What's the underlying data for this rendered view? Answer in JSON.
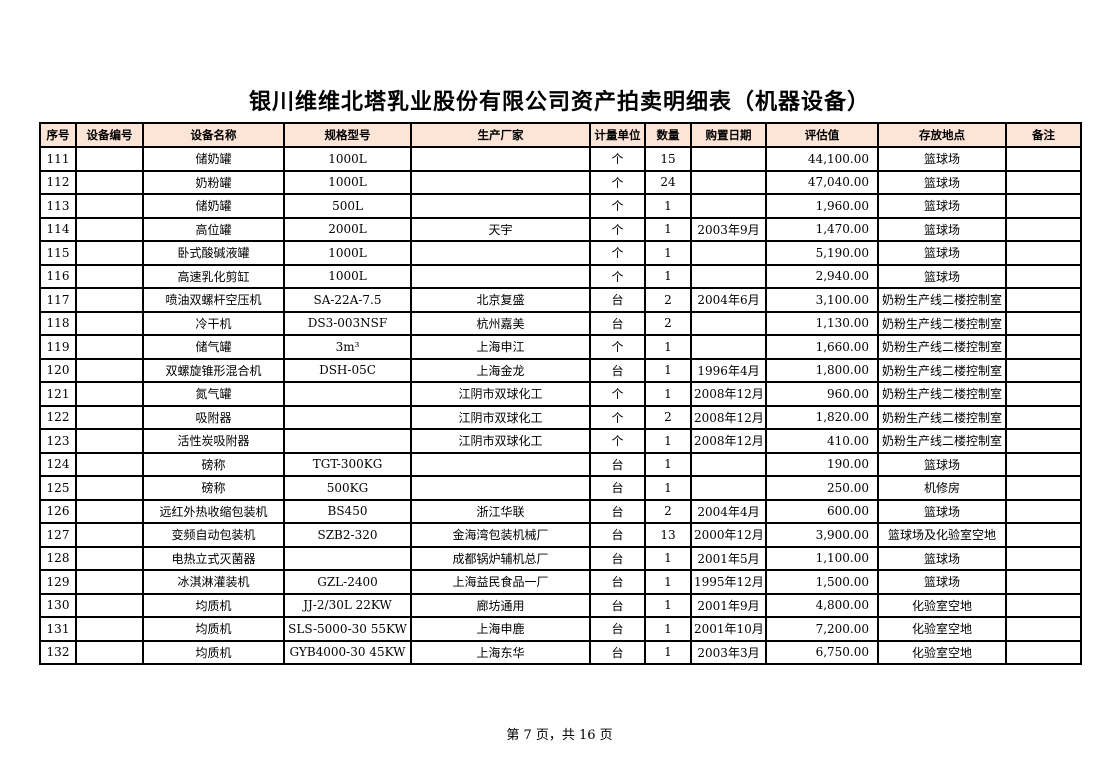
{
  "title": "银川维维北塔乳业股份有限公司资产拍卖明细表（机器设备）",
  "columns": [
    "序号",
    "设备编号",
    "设备名称",
    "规格型号",
    "生产厂家",
    "计量单位",
    "数量",
    "购置日期",
    "评估值",
    "存放地点",
    "备注"
  ],
  "rows": [
    [
      "111",
      "",
      "储奶罐",
      "1000L",
      "",
      "个",
      "15",
      "",
      "44,100.00",
      "篮球场",
      ""
    ],
    [
      "112",
      "",
      "奶粉罐",
      "1000L",
      "",
      "个",
      "24",
      "",
      "47,040.00",
      "篮球场",
      ""
    ],
    [
      "113",
      "",
      "储奶罐",
      "500L",
      "",
      "个",
      "1",
      "",
      "1,960.00",
      "篮球场",
      ""
    ],
    [
      "114",
      "",
      "高位罐",
      "2000L",
      "天宇",
      "个",
      "1",
      "2003年9月",
      "1,470.00",
      "篮球场",
      ""
    ],
    [
      "115",
      "",
      "卧式酸碱液罐",
      "1000L",
      "",
      "个",
      "1",
      "",
      "5,190.00",
      "篮球场",
      ""
    ],
    [
      "116",
      "",
      "高速乳化剪缸",
      "1000L",
      "",
      "个",
      "1",
      "",
      "2,940.00",
      "篮球场",
      ""
    ],
    [
      "117",
      "",
      "喷油双螺杆空压机",
      "SA-22A-7.5",
      "北京复盛",
      "台",
      "2",
      "2004年6月",
      "3,100.00",
      "奶粉生产线二楼控制室",
      ""
    ],
    [
      "118",
      "",
      "冷干机",
      "DS3-003NSF",
      "杭州嘉美",
      "台",
      "2",
      "",
      "1,130.00",
      "奶粉生产线二楼控制室",
      ""
    ],
    [
      "119",
      "",
      "储气罐",
      "3m³",
      "上海申江",
      "个",
      "1",
      "",
      "1,660.00",
      "奶粉生产线二楼控制室",
      ""
    ],
    [
      "120",
      "",
      "双螺旋锥形混合机",
      "DSH-05C",
      "上海金龙",
      "台",
      "1",
      "1996年4月",
      "1,800.00",
      "奶粉生产线二楼控制室",
      ""
    ],
    [
      "121",
      "",
      "氮气罐",
      "",
      "江阴市双球化工",
      "个",
      "1",
      "2008年12月",
      "960.00",
      "奶粉生产线二楼控制室",
      ""
    ],
    [
      "122",
      "",
      "吸附器",
      "",
      "江阴市双球化工",
      "个",
      "2",
      "2008年12月",
      "1,820.00",
      "奶粉生产线二楼控制室",
      ""
    ],
    [
      "123",
      "",
      "活性炭吸附器",
      "",
      "江阴市双球化工",
      "个",
      "1",
      "2008年12月",
      "410.00",
      "奶粉生产线二楼控制室",
      ""
    ],
    [
      "124",
      "",
      "磅称",
      "TGT-300KG",
      "",
      "台",
      "1",
      "",
      "190.00",
      "篮球场",
      ""
    ],
    [
      "125",
      "",
      "磅称",
      "500KG",
      "",
      "台",
      "1",
      "",
      "250.00",
      "机修房",
      ""
    ],
    [
      "126",
      "",
      "远红外热收缩包装机",
      "BS450",
      "浙江华联",
      "台",
      "2",
      "2004年4月",
      "600.00",
      "篮球场",
      ""
    ],
    [
      "127",
      "",
      "变频自动包装机",
      "SZB2-320",
      "金海湾包装机械厂",
      "台",
      "13",
      "2000年12月",
      "3,900.00",
      "篮球场及化验室空地",
      ""
    ],
    [
      "128",
      "",
      "电热立式灭菌器",
      "",
      "成都锅炉辅机总厂",
      "台",
      "1",
      "2001年5月",
      "1,100.00",
      "篮球场",
      ""
    ],
    [
      "129",
      "",
      "冰淇淋灌装机",
      "GZL-2400",
      "上海益民食品一厂",
      "台",
      "1",
      "1995年12月",
      "1,500.00",
      "篮球场",
      ""
    ],
    [
      "130",
      "",
      "均质机",
      "JJ-2/30L 22KW",
      "廊坊通用",
      "台",
      "1",
      "2001年9月",
      "4,800.00",
      "化验室空地",
      ""
    ],
    [
      "131",
      "",
      "均质机",
      "SLS-5000-30 55KW",
      "上海申鹿",
      "台",
      "1",
      "2001年10月",
      "7,200.00",
      "化验室空地",
      ""
    ],
    [
      "132",
      "",
      "均质机",
      "GYB4000-30 45KW",
      "上海东华",
      "台",
      "1",
      "2003年3月",
      "6,750.00",
      "化验室空地",
      ""
    ]
  ],
  "footer": "第 7 页，共 16 页",
  "colors": {
    "header_bg": "#fce4d6",
    "border": "#000000"
  }
}
